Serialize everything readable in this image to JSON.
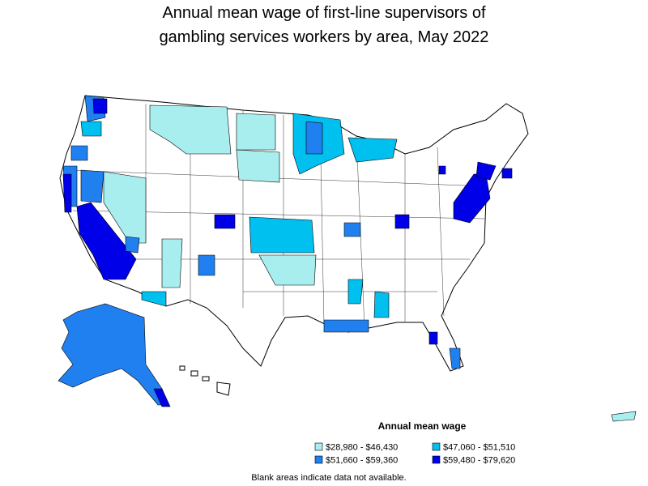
{
  "map": {
    "title": [
      "Annual mean wage of first-line supervisors of",
      "gambling services workers by area, May 2022"
    ],
    "legend": {
      "title": "Annual mean wage",
      "items": [
        {
          "label": "$28,980 - $46,430",
          "color": "#a8eeee"
        },
        {
          "label": "$47,060 - $51,510",
          "color": "#00c0f0"
        },
        {
          "label": "$51,660 - $59,360",
          "color": "#2080f0"
        },
        {
          "label": "$59,480 - $79,620",
          "color": "#0000e8"
        }
      ]
    },
    "note": "Blank areas indicate data not available."
  }
}
